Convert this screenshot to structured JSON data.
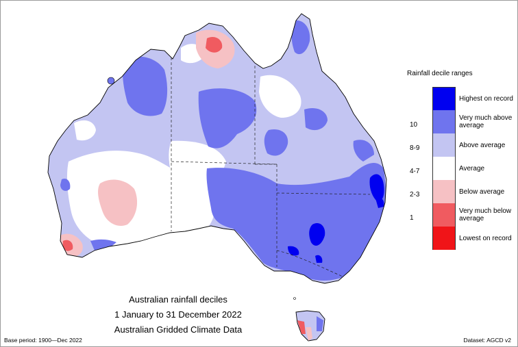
{
  "map": {
    "caption_line1": "Australian rainfall deciles",
    "caption_line2": "1 January to 31 December 2022",
    "caption_line3": "Australian Gridded Climate Data",
    "base_period": "Base period: 1900—Dec 2022",
    "dataset": "Dataset: AGCD v2"
  },
  "legend": {
    "title": "Rainfall decile ranges",
    "entries": [
      {
        "label": "Highest on record",
        "color": "#0000f0"
      },
      {
        "label": "Very much above average",
        "color": "#6f74ee"
      },
      {
        "label": "Above average",
        "color": "#c3c5f2"
      },
      {
        "label": "Average",
        "color": "#ffffff"
      },
      {
        "label": "Below average",
        "color": "#f6c1c4"
      },
      {
        "label": "Very much below average",
        "color": "#f05b60"
      },
      {
        "label": "Lowest on record",
        "color": "#f01418"
      }
    ],
    "ticks": [
      "10",
      "8-9",
      "4-7",
      "2-3",
      "1"
    ]
  }
}
